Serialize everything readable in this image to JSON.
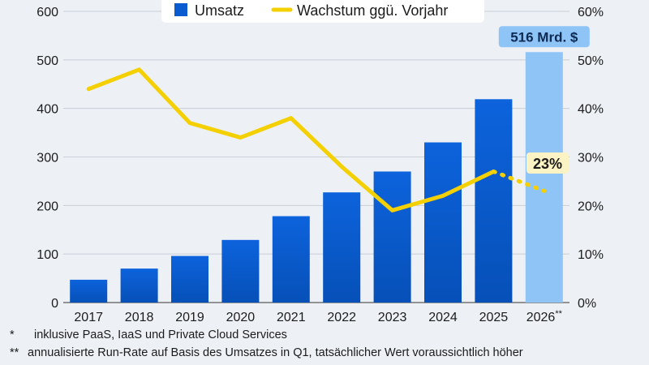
{
  "chart_data": {
    "type": "bar",
    "categories": [
      "2017",
      "2018",
      "2019",
      "2020",
      "2021",
      "2022",
      "2023",
      "2024",
      "2025",
      "2026**"
    ],
    "series": [
      {
        "name": "Umsatz",
        "kind": "bar",
        "axis": "left",
        "values": [
          47,
          70,
          96,
          129,
          178,
          227,
          270,
          330,
          419,
          516
        ],
        "color": "#0a5bd0",
        "highlight_color": "#8fc4f7"
      },
      {
        "name": "Wachstum ggü. Vorjahr",
        "kind": "line",
        "axis": "right",
        "values": [
          44,
          48,
          37,
          34,
          38,
          28,
          19,
          22,
          27,
          23
        ],
        "color": "#f5d000",
        "dashed_from_index": 8
      }
    ],
    "ylim": [
      0,
      600
    ],
    "yticks": [
      "0",
      "100",
      "200",
      "300",
      "400",
      "500",
      "600"
    ],
    "y2lim": [
      0,
      60
    ],
    "y2ticks": [
      "0%",
      "10%",
      "20%",
      "30%",
      "40%",
      "50%",
      "60%"
    ],
    "grid": true,
    "legend_position": "top-center",
    "annotations": {
      "bar_label": "516 Mrd. $",
      "line_label": "23%"
    }
  },
  "footnotes": [
    {
      "mark": "*",
      "text": "inklusive PaaS, IaaS und Private Cloud Services"
    },
    {
      "mark": "**",
      "text": "annualisierte Run-Rate auf Basis des Umsatzes in Q1, tatsächlicher Wert voraussichtlich höher"
    }
  ]
}
